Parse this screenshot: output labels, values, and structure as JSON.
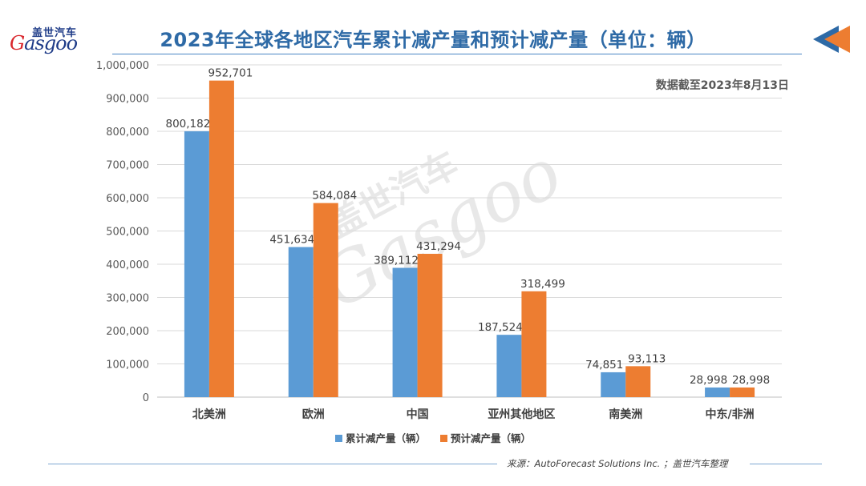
{
  "header": {
    "logo_cn": "盖世汽车",
    "logo_en_initial": "G",
    "logo_en_rest": "asgoo",
    "title": "2023年全球各地区汽车累计减产量和预计减产量（单位：辆）"
  },
  "note": "数据截至2023年8月13日",
  "watermark": {
    "cn": "盖世汽车",
    "en": "Gasgoo"
  },
  "footer": {
    "source": "来源：AutoForecast Solutions Inc. ；盖世汽车整理"
  },
  "colors": {
    "series1": "#5b9bd5",
    "series2": "#ed7d31",
    "title": "#2e6aa6"
  },
  "chart_data": {
    "type": "bar",
    "title": "2023年全球各地区汽车累计减产量和预计减产量（单位：辆）",
    "categories": [
      "北美洲",
      "欧洲",
      "中国",
      "亚州其他地区",
      "南美洲",
      "中东/非洲"
    ],
    "series": [
      {
        "name": "累计减产量（辆）",
        "values": [
          800182,
          451634,
          389112,
          187524,
          74851,
          28998
        ],
        "labels": [
          "800,182",
          "451,634",
          "389,112",
          "187,524",
          "74,851",
          "28,998"
        ]
      },
      {
        "name": "预计减产量（辆）",
        "values": [
          952701,
          584084,
          431294,
          318499,
          93113,
          28998
        ],
        "labels": [
          "952,701",
          "584,084",
          "431,294",
          "318,499",
          "93,113",
          "28,998"
        ]
      }
    ],
    "ylim": [
      0,
      1000000
    ],
    "yticks": [
      "0",
      "100,000",
      "200,000",
      "300,000",
      "400,000",
      "500,000",
      "600,000",
      "700,000",
      "800,000",
      "900,000",
      "1,000,000"
    ],
    "grid": true,
    "legend": "bottom"
  }
}
